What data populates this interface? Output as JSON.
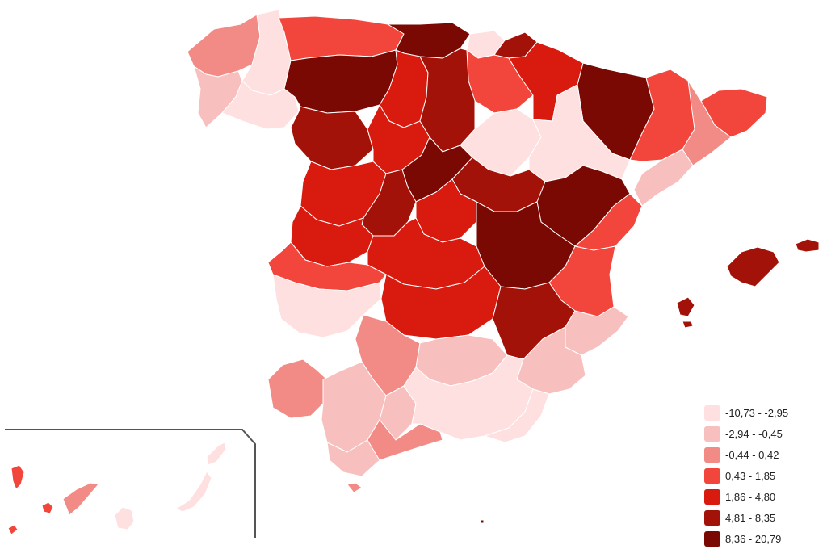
{
  "map": {
    "region": "Spain provinces",
    "colors": {
      "c1": "#ffe0e0",
      "c2": "#f8bfbf",
      "c3": "#f28a86",
      "c4": "#f2463d",
      "c5": "#d91a0e",
      "c6": "#a31209",
      "c7": "#7a0903"
    }
  },
  "legend": {
    "items": [
      {
        "label": "-10,73  -  -2,95",
        "color": "#ffe0e0"
      },
      {
        "label": "-2,94  -  -0,45",
        "color": "#f8bfbf"
      },
      {
        "label": "-0,44  -  0,42",
        "color": "#f28a86"
      },
      {
        "label": "0,43  -  1,85",
        "color": "#f2463d"
      },
      {
        "label": "1,86  -  4,80",
        "color": "#d91a0e"
      },
      {
        "label": "4,81  -  8,35",
        "color": "#a31209"
      },
      {
        "label": "8,36  -  20,79",
        "color": "#7a0903"
      }
    ]
  }
}
